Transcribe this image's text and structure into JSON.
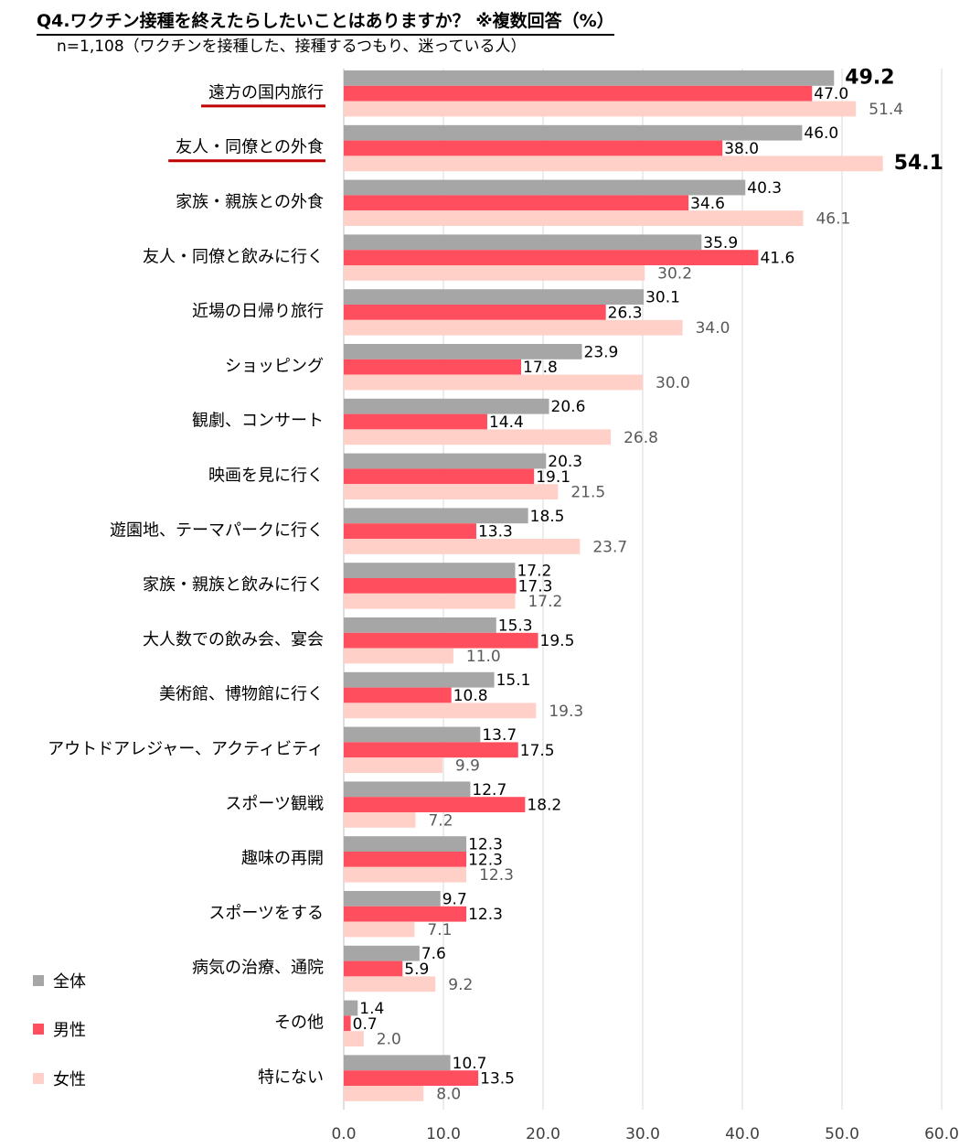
{
  "title": "Q4.ワクチン接種を終えたらしたいことはありますか？ ※複数回答（%）",
  "subtitle": "n=1,108（ワクチンを接種した、接種するつもり、迷っている人）",
  "colors": {
    "overall": "#a6a6a6",
    "male": "#ff4f5e",
    "female": "#ffd0c8",
    "highlight_underline": "#c00000",
    "female_label": "#595959",
    "grid": "#d9d9d9"
  },
  "chart_data": {
    "type": "bar",
    "orientation": "horizontal",
    "title": "Q4.ワクチン接種を終えたらしたいことはありますか？ ※複数回答（%）",
    "xlabel": "",
    "ylabel": "",
    "xlim": [
      0,
      60
    ],
    "xticks": [
      "0.0",
      "10.0",
      "20.0",
      "30.0",
      "40.0",
      "50.0",
      "60.0"
    ],
    "grid": "vertical",
    "legend_position": "bottom-left",
    "highlighted_categories": [
      "遠方の国内旅行",
      "友人・同僚との外食"
    ],
    "bold_labels": [
      {
        "series": "全体",
        "category": "遠方の国内旅行"
      },
      {
        "series": "女性",
        "category": "友人・同僚との外食"
      }
    ],
    "categories": [
      "遠方の国内旅行",
      "友人・同僚との外食",
      "家族・親族との外食",
      "友人・同僚と飲みに行く",
      "近場の日帰り旅行",
      "ショッピング",
      "観劇、コンサート",
      "映画を見に行く",
      "遊園地、テーマパークに行く",
      "家族・親族と飲みに行く",
      "大人数での飲み会、宴会",
      "美術館、博物館に行く",
      "アウトドアレジャー、アクティビティ",
      "スポーツ観戦",
      "趣味の再開",
      "スポーツをする",
      "病気の治療、通院",
      "その他",
      "特にない"
    ],
    "series": [
      {
        "name": "全体",
        "color": "#a6a6a6",
        "values": [
          49.2,
          46.0,
          40.3,
          35.9,
          30.1,
          23.9,
          20.6,
          20.3,
          18.5,
          17.2,
          15.3,
          15.1,
          13.7,
          12.7,
          12.3,
          9.7,
          7.6,
          1.4,
          10.7
        ]
      },
      {
        "name": "男性",
        "color": "#ff4f5e",
        "values": [
          47.0,
          38.0,
          34.6,
          41.6,
          26.3,
          17.8,
          14.4,
          19.1,
          13.3,
          17.3,
          19.5,
          10.8,
          17.5,
          18.2,
          12.3,
          12.3,
          5.9,
          0.7,
          13.5
        ]
      },
      {
        "name": "女性",
        "color": "#ffd0c8",
        "values": [
          51.4,
          54.1,
          46.1,
          30.2,
          34.0,
          30.0,
          26.8,
          21.5,
          23.7,
          17.2,
          11.0,
          19.3,
          9.9,
          7.2,
          12.3,
          7.1,
          9.2,
          2.0,
          8.0
        ]
      }
    ]
  }
}
